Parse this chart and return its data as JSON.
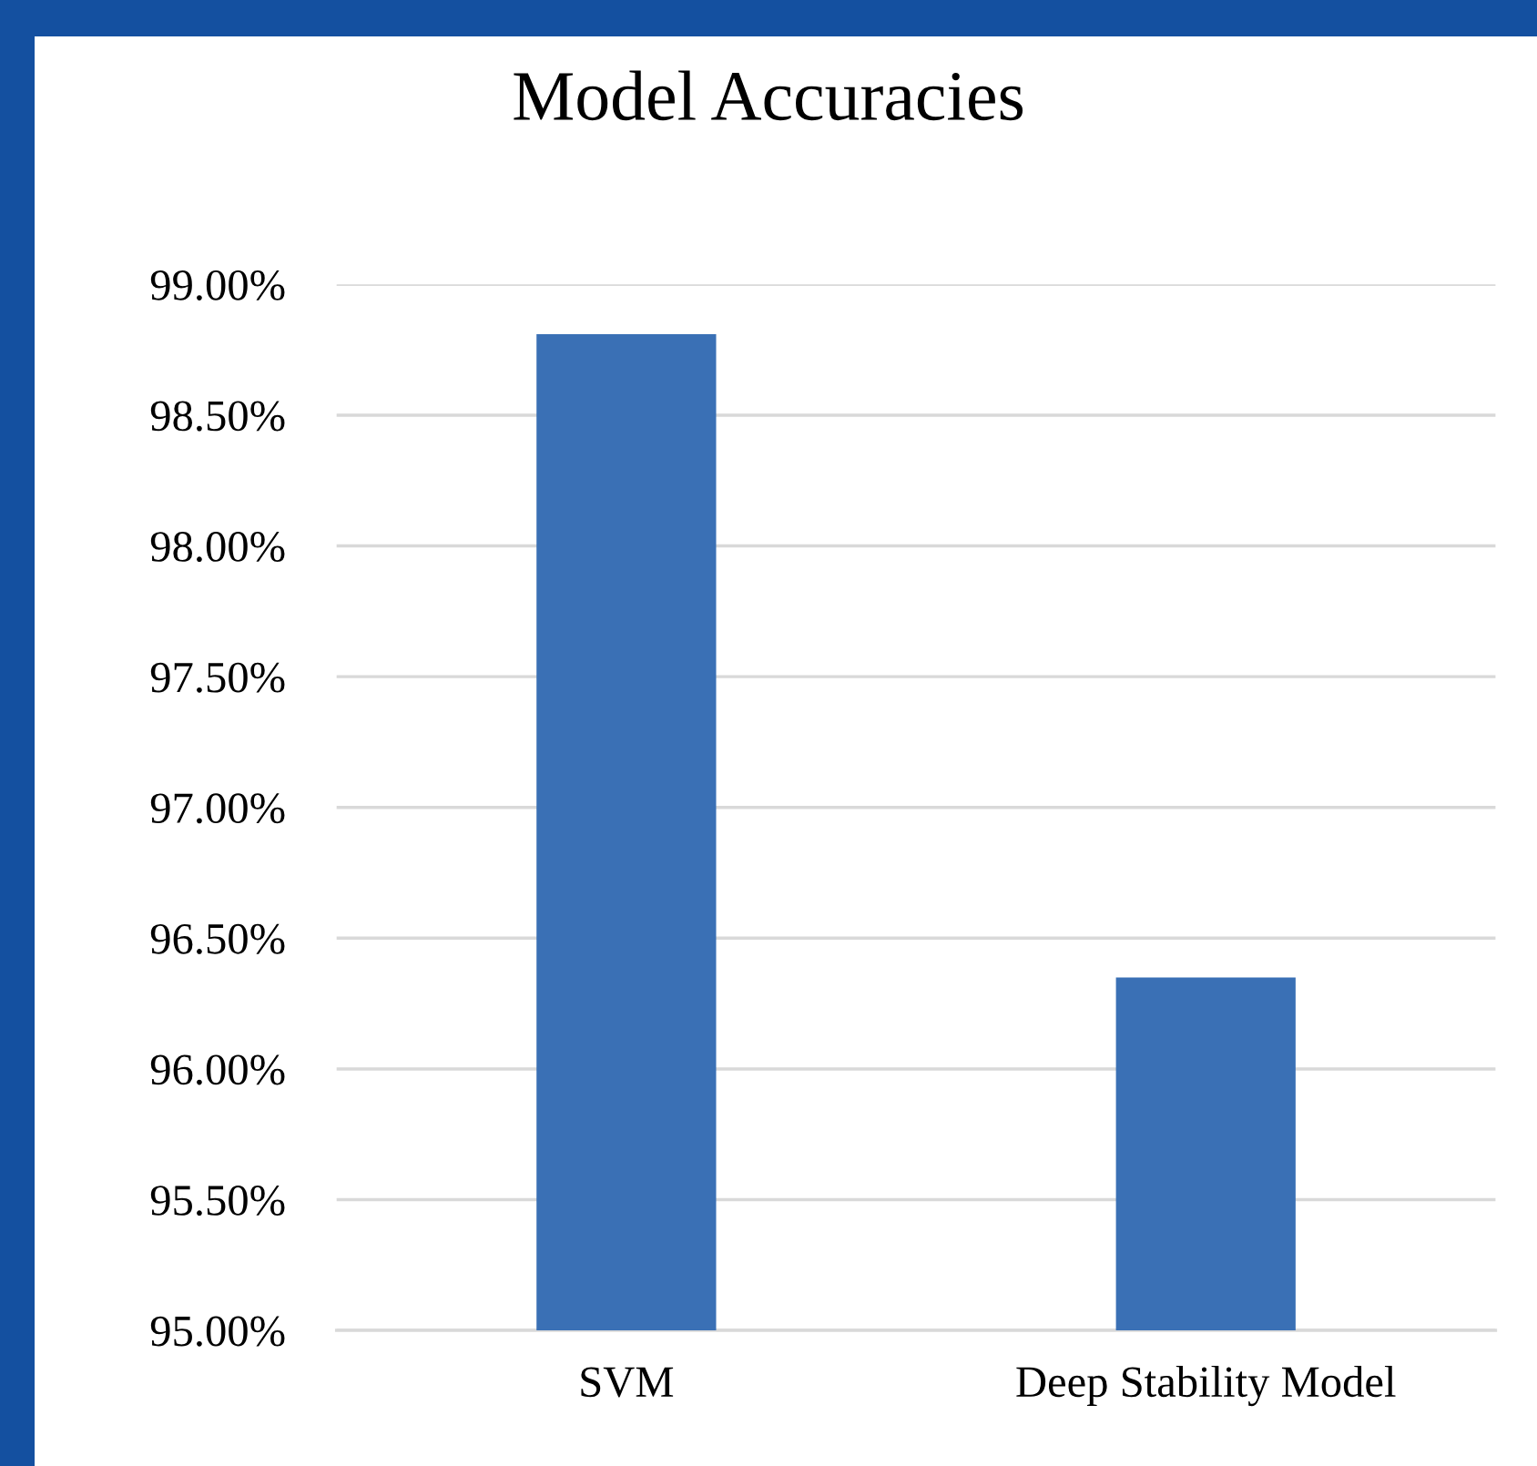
{
  "chart_data": {
    "type": "bar",
    "title": "Model Accuracies",
    "categories": [
      "SVM",
      "Deep Stability Model"
    ],
    "values": [
      98.81,
      96.35
    ],
    "color": "#3a70b5",
    "ylim": [
      95,
      99
    ],
    "yticks": [
      {
        "value": 95,
        "label": "95.00%"
      },
      {
        "value": 95.5,
        "label": "95.50%"
      },
      {
        "value": 96,
        "label": "96.00%"
      },
      {
        "value": 96.5,
        "label": "96.50%"
      },
      {
        "value": 97,
        "label": "97.00%"
      },
      {
        "value": 97.5,
        "label": "97.50%"
      },
      {
        "value": 98,
        "label": "98.00%"
      },
      {
        "value": 98.5,
        "label": "98.50%"
      },
      {
        "value": 99,
        "label": "99.00%"
      }
    ],
    "grid": "y",
    "legend": false
  }
}
